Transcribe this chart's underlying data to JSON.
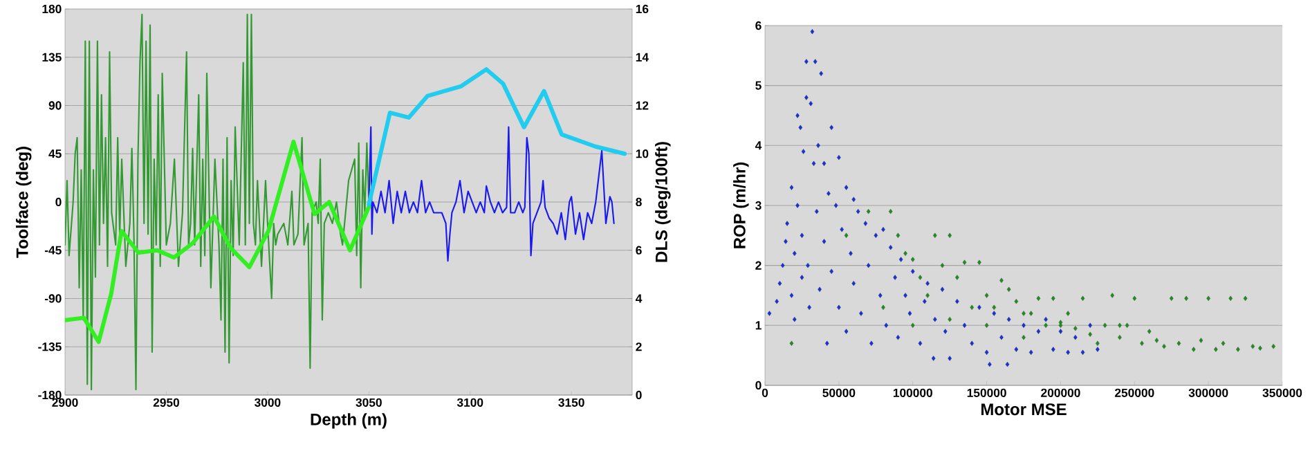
{
  "chart_data": [
    {
      "type": "line",
      "xlabel": "Depth (m)",
      "ylabel": "Toolface (deg)",
      "y2label": "DLS (deg/100ft)",
      "grid": "y",
      "xlim": [
        2900,
        3180
      ],
      "xticks": [
        2900,
        2950,
        3000,
        3050,
        3100,
        3150
      ],
      "ylim": [
        -180,
        180
      ],
      "yticks": [
        -180,
        -135,
        -90,
        -45,
        0,
        45,
        90,
        135,
        180
      ],
      "y2lim": [
        0,
        16
      ],
      "y2ticks": [
        0,
        2,
        4,
        6,
        8,
        10,
        12,
        14,
        16
      ],
      "series": [
        {
          "color": "#339933",
          "x": [
            2900,
            2901,
            2902,
            2904,
            2905,
            2906,
            2907,
            2908,
            2909,
            2910,
            2911,
            2912,
            2913,
            2914,
            2915,
            2916,
            2917,
            2918,
            2919,
            2920,
            2921,
            2922,
            2923,
            2925,
            2926,
            2927,
            2928,
            2929,
            2930,
            2932,
            2933,
            2934,
            2935,
            2936,
            2937,
            2938,
            2939,
            2940,
            2941,
            2942,
            2943,
            2944,
            2945,
            2946,
            2947,
            2948,
            2950,
            2952,
            2954,
            2956,
            2958,
            2960,
            2961,
            2962,
            2963,
            2964,
            2966,
            2967,
            2968,
            2969,
            2970,
            2972,
            2974,
            2976,
            2977,
            2978,
            2979,
            2980,
            2981,
            2982,
            2983,
            2984,
            2986,
            2988,
            2989,
            2990,
            2991,
            2992,
            2993,
            2994,
            2995,
            2997,
            2999,
            3000,
            3002,
            3003,
            3004,
            3005,
            3008,
            3010,
            3012,
            3013,
            3015,
            3017,
            3018,
            3020,
            3021,
            3022,
            3024,
            3025,
            3026,
            3027,
            3028,
            3030,
            3032,
            3034,
            3036,
            3037,
            3040,
            3043,
            3044,
            3045,
            3046,
            3047,
            3048,
            3049,
            3050
          ],
          "values": [
            -40,
            20,
            -50,
            0,
            45,
            60,
            -80,
            30,
            -110,
            150,
            -170,
            150,
            -175,
            30,
            -70,
            150,
            -40,
            100,
            -20,
            60,
            -60,
            140,
            -10,
            -40,
            60,
            -30,
            40,
            -10,
            -60,
            -20,
            50,
            -30,
            -175,
            40,
            130,
            175,
            -20,
            150,
            -30,
            165,
            -140,
            40,
            -40,
            100,
            -60,
            120,
            -40,
            -20,
            40,
            -60,
            -10,
            140,
            -40,
            -20,
            50,
            -40,
            100,
            -60,
            40,
            -50,
            120,
            -80,
            40,
            -40,
            -110,
            40,
            -140,
            60,
            -150,
            20,
            -50,
            70,
            -40,
            130,
            -40,
            175,
            -20,
            175,
            -20,
            -40,
            20,
            -60,
            20,
            -20,
            -90,
            -20,
            -40,
            -30,
            -20,
            -40,
            10,
            -40,
            -30,
            60,
            -40,
            -20,
            -155,
            -10,
            0,
            -20,
            40,
            -110,
            -20,
            -10,
            -20,
            0,
            -30,
            -40,
            20,
            40,
            -50,
            55,
            -80,
            30,
            -10,
            55,
            0
          ]
        },
        {
          "color": "#1a1aee",
          "x": [
            3050,
            3051,
            3051.5,
            3052,
            3054,
            3056,
            3058,
            3060,
            3062,
            3064,
            3066,
            3068,
            3070,
            3072,
            3074,
            3076,
            3078,
            3080,
            3082,
            3084,
            3086,
            3088,
            3089,
            3090,
            3091,
            3093,
            3095,
            3097,
            3099,
            3101,
            3103,
            3105,
            3107,
            3108,
            3110,
            3112,
            3114,
            3116,
            3118,
            3119,
            3120,
            3122,
            3124,
            3126,
            3127,
            3128,
            3129,
            3130,
            3131,
            3133,
            3135,
            3136,
            3137,
            3139,
            3141,
            3143,
            3145,
            3147,
            3149,
            3150,
            3152,
            3154,
            3156,
            3158,
            3160,
            3162,
            3165,
            3167,
            3169,
            3170,
            3171
          ],
          "values": [
            0,
            70,
            -30,
            0,
            -10,
            10,
            -10,
            20,
            -20,
            10,
            -10,
            10,
            -10,
            0,
            -10,
            20,
            -10,
            0,
            -10,
            -10,
            -10,
            -20,
            -55,
            -30,
            -10,
            0,
            20,
            -10,
            10,
            0,
            -10,
            0,
            -10,
            15,
            0,
            -10,
            0,
            -10,
            -5,
            70,
            -10,
            -10,
            0,
            -10,
            -5,
            60,
            45,
            -50,
            -20,
            -10,
            0,
            20,
            -5,
            -15,
            -20,
            -30,
            -10,
            -35,
            0,
            5,
            -30,
            -10,
            -35,
            -10,
            -20,
            0,
            48,
            -20,
            5,
            0,
            -20
          ]
        },
        {
          "color": "#33ee22",
          "axis": "y2",
          "x": [
            2900,
            2909.3,
            2916.6,
            2922.8,
            2927.9,
            2936.2,
            2945.5,
            2953.8,
            2963.1,
            2973.5,
            2981.7,
            2991,
            3000.4,
            3012.8,
            3023.2,
            3030.4,
            3040.7,
            3050
          ],
          "values": [
            3.1,
            3.2,
            2.2,
            4.2,
            6.8,
            5.9,
            6.0,
            5.7,
            6.3,
            7.4,
            6.1,
            5.3,
            6.8,
            10.5,
            7.5,
            8.0,
            6.0,
            7.8
          ]
        },
        {
          "color": "#22ccee",
          "axis": "y2",
          "x": [
            3050,
            3055.2,
            3060.4,
            3069.7,
            3079,
            3095.6,
            3108,
            3116.3,
            3126.6,
            3136.5,
            3145.2,
            3161.8,
            3176.3
          ],
          "values": [
            7.9,
            9.8,
            11.7,
            11.5,
            12.4,
            12.8,
            13.5,
            12.9,
            11.1,
            12.6,
            10.8,
            10.3,
            10.0
          ]
        }
      ]
    },
    {
      "type": "scatter",
      "xlabel": "Motor MSE",
      "ylabel": "ROP (m/hr)",
      "grid": "y",
      "marker": "diamond",
      "xlim": [
        0,
        350000
      ],
      "xticks": [
        0,
        50000,
        100000,
        150000,
        200000,
        250000,
        300000,
        350000
      ],
      "ylim": [
        0,
        6
      ],
      "yticks": [
        0,
        1,
        2,
        3,
        4,
        5,
        6
      ],
      "series": [
        {
          "color": "#228b22",
          "x": [
            18000,
            55000,
            70000,
            85000,
            90000,
            95000,
            100000,
            105000,
            110000,
            115000,
            120000,
            125000,
            130000,
            135000,
            140000,
            145000,
            150000,
            155000,
            160000,
            165000,
            170000,
            175000,
            180000,
            185000,
            190000,
            195000,
            200000,
            205000,
            210000,
            215000,
            220000,
            225000,
            230000,
            235000,
            240000,
            245000,
            250000,
            255000,
            260000,
            265000,
            270000,
            275000,
            280000,
            285000,
            290000,
            295000,
            300000,
            305000,
            310000,
            315000,
            320000,
            325000,
            330000,
            335000,
            344000,
            175000,
            200000,
            150000,
            125000,
            100000,
            80000,
            240000
          ],
          "values": [
            0.7,
            2.5,
            2.9,
            2.9,
            2.5,
            2.2,
            2.1,
            1.8,
            1.5,
            2.5,
            2.0,
            2.5,
            1.8,
            2.05,
            1.3,
            2.05,
            1.5,
            1.3,
            1.75,
            1.6,
            1.4,
            1.2,
            1.2,
            1.45,
            1.0,
            1.45,
            1.05,
            1.2,
            0.95,
            1.45,
            0.85,
            0.7,
            1.0,
            1.5,
            0.8,
            1.0,
            1.45,
            0.7,
            0.9,
            0.75,
            0.65,
            1.45,
            0.7,
            1.45,
            0.6,
            0.75,
            1.45,
            0.6,
            0.7,
            1.45,
            0.6,
            1.45,
            0.65,
            0.62,
            0.65,
            0.8,
            1.0,
            1.0,
            1.1,
            1.0,
            1.3,
            1.0
          ]
        },
        {
          "color": "#1a33cc",
          "x": [
            3000,
            8000,
            10000,
            12000,
            14000,
            15000,
            18000,
            18000,
            20000,
            20000,
            22000,
            22000,
            24000,
            25000,
            25000,
            26000,
            28000,
            28000,
            29000,
            30000,
            31000,
            32000,
            33000,
            34000,
            35000,
            36000,
            37000,
            38000,
            40000,
            40000,
            42000,
            43000,
            45000,
            45000,
            48000,
            50000,
            50000,
            52000,
            55000,
            55000,
            58000,
            60000,
            60000,
            63000,
            65000,
            68000,
            70000,
            72000,
            75000,
            78000,
            80000,
            82000,
            85000,
            88000,
            90000,
            92000,
            95000,
            98000,
            100000,
            105000,
            108000,
            110000,
            114000,
            115000,
            120000,
            122000,
            125000,
            130000,
            135000,
            140000,
            145000,
            150000,
            152000,
            155000,
            160000,
            164000,
            165000,
            170000,
            175000,
            180000,
            185000,
            190000,
            195000,
            200000,
            205000,
            210000,
            215000,
            220000,
            225000
          ],
          "values": [
            1.2,
            1.4,
            1.7,
            2.0,
            2.4,
            2.7,
            3.3,
            1.5,
            2.2,
            1.1,
            4.5,
            3.0,
            4.3,
            2.5,
            1.8,
            3.9,
            4.8,
            5.4,
            2.0,
            1.3,
            4.7,
            5.9,
            3.7,
            5.4,
            2.9,
            4.0,
            1.6,
            5.2,
            3.7,
            2.4,
            0.7,
            3.2,
            4.3,
            1.9,
            3.0,
            3.8,
            1.3,
            2.6,
            3.3,
            0.9,
            2.2,
            3.1,
            1.7,
            2.9,
            1.2,
            2.7,
            2.0,
            0.7,
            2.5,
            1.5,
            2.6,
            1.0,
            2.3,
            1.8,
            0.8,
            2.1,
            1.5,
            1.2,
            1.9,
            0.7,
            1.4,
            1.7,
            0.45,
            1.1,
            1.6,
            0.9,
            0.45,
            1.4,
            1.0,
            0.7,
            1.3,
            0.55,
            0.35,
            1.2,
            0.8,
            0.35,
            1.1,
            0.6,
            1.0,
            0.55,
            0.9,
            1.1,
            0.6,
            0.9,
            0.55,
            0.8,
            0.55,
            1.0,
            0.6
          ]
        }
      ]
    }
  ]
}
